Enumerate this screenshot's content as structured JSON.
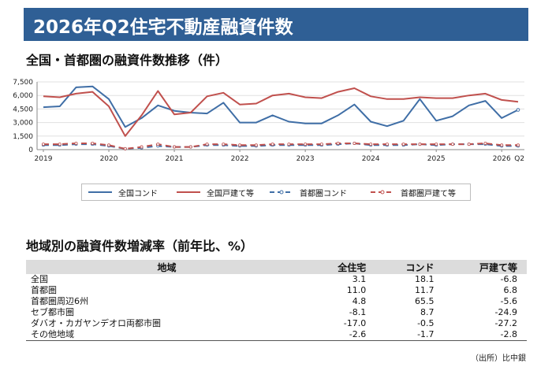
{
  "title": "2026年Q2住宅不動産融資件数",
  "chart_section_title": "全国・首都圏の融資件数推移（件）",
  "chart_data": {
    "type": "line",
    "x_labels": [
      "2019",
      "2020",
      "2021",
      "2022",
      "2023",
      "2024",
      "2025",
      "2026"
    ],
    "x_last_suffix": "Q2",
    "y_ticks": [
      "0",
      "1,500",
      "3,000",
      "4,500",
      "6,000",
      "7,500"
    ],
    "ylim": [
      0,
      7500
    ],
    "quarters_per_year": 4,
    "series": [
      {
        "name": "全国コンド",
        "color": "#3f6ea6",
        "dash": "solid",
        "markers": false,
        "values": [
          4700,
          4800,
          6900,
          7000,
          5600,
          2500,
          3500,
          4900,
          4300,
          4100,
          4000,
          5200,
          3000,
          3000,
          3800,
          3100,
          2900,
          2900,
          3800,
          5000,
          3100,
          2600,
          3200,
          5600,
          3200,
          3700,
          4900,
          5400,
          3500,
          4400
        ]
      },
      {
        "name": "全国戸建て等",
        "color": "#c0504d",
        "dash": "solid",
        "markers": false,
        "values": [
          5900,
          5800,
          6200,
          6400,
          4800,
          1500,
          3800,
          6500,
          3900,
          4100,
          5900,
          6300,
          5000,
          5100,
          6000,
          6200,
          5800,
          5700,
          6400,
          6800,
          5900,
          5600,
          5600,
          5800,
          5700,
          5700,
          6000,
          6200,
          5500,
          5300
        ]
      },
      {
        "name": "首都圏コンド",
        "color": "#3f6ea6",
        "dash": "dashed",
        "markers": true,
        "values": [
          500,
          500,
          600,
          600,
          400,
          100,
          200,
          400,
          300,
          300,
          500,
          500,
          400,
          400,
          500,
          500,
          500,
          500,
          600,
          700,
          500,
          500,
          500,
          600,
          500,
          600,
          600,
          600,
          400,
          400
        ]
      },
      {
        "name": "首都圏戸建て等",
        "color": "#c0504d",
        "dash": "dashed",
        "markers": true,
        "values": [
          600,
          600,
          700,
          700,
          500,
          100,
          300,
          600,
          300,
          300,
          600,
          600,
          500,
          500,
          600,
          600,
          600,
          600,
          700,
          700,
          600,
          600,
          600,
          600,
          600,
          600,
          600,
          700,
          500,
          500
        ]
      }
    ]
  },
  "table_section_title": "地域別の融資件数増減率（前年比、%）",
  "table": {
    "headers": [
      "地域",
      "全住宅",
      "コンド",
      "戸建て等"
    ],
    "rows": [
      [
        "全国",
        "3.1",
        "18.1",
        "-6.8"
      ],
      [
        "首都圏",
        "11.0",
        "11.7",
        "6.8"
      ],
      [
        "首都圏周辺6州",
        "4.8",
        "65.5",
        "-5.6"
      ],
      [
        "セブ都市圏",
        "-8.1",
        "8.7",
        "-24.9"
      ],
      [
        "ダバオ・カガヤンデオロ両都市圏",
        "-17.0",
        "-0.5",
        "-27.2"
      ],
      [
        "その他地域",
        "-2.6",
        "-1.7",
        "-2.8"
      ]
    ]
  },
  "source": "（出所）比中銀"
}
